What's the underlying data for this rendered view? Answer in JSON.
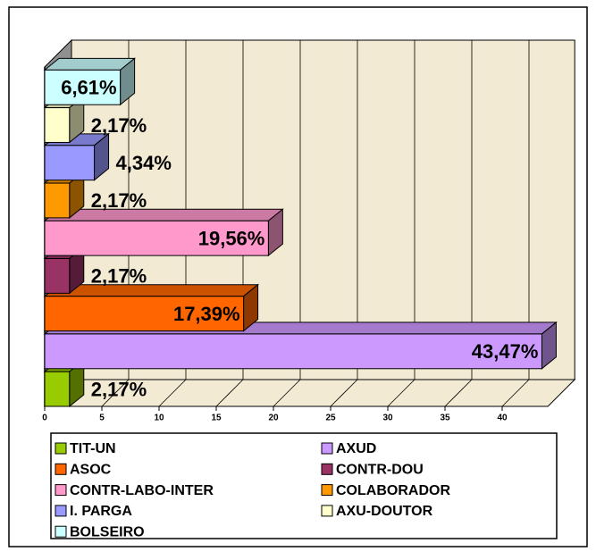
{
  "chart_data": {
    "type": "bar3d-horizontal",
    "categories": [
      "TIT-UN",
      "AXUD",
      "ASOC",
      "CONTR-DOU",
      "CONTR-LABO-INTER",
      "COLABORADOR",
      "I. PARGA",
      "AXU-DOUTOR",
      "BOLSEIRO"
    ],
    "values": [
      2.17,
      43.47,
      17.39,
      2.17,
      19.56,
      2.17,
      4.34,
      2.17,
      6.61
    ],
    "value_labels": [
      "2,17%",
      "43,47%",
      "17,39%",
      "2,17%",
      "19,56%",
      "2,17%",
      "4,34%",
      "2,17%",
      "6,61%"
    ],
    "colors": [
      "#99cc00",
      "#cc99ff",
      "#ff6600",
      "#993366",
      "#ff99cc",
      "#ff9900",
      "#9999ff",
      "#ffffcc",
      "#ccffff"
    ],
    "xlim": [
      0,
      44
    ],
    "xticks": [
      0,
      5,
      10,
      15,
      20,
      25,
      30,
      35,
      40
    ],
    "grid": true,
    "legend": "bottom"
  }
}
